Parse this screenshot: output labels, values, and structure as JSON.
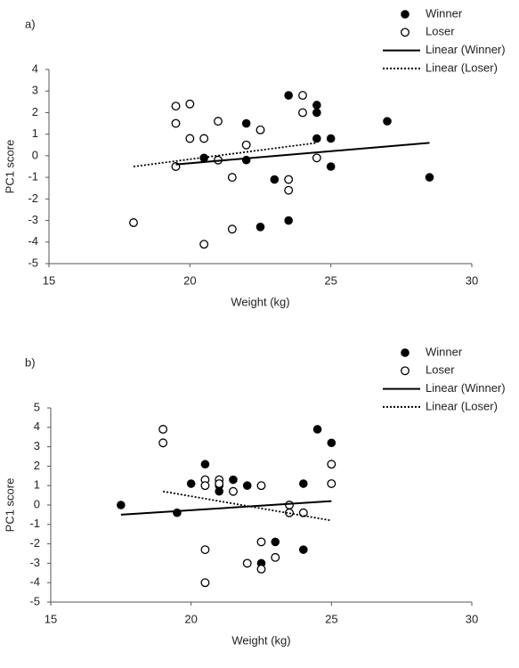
{
  "chart_data": [
    {
      "type": "scatter",
      "label": "a)",
      "xlabel": "Weight (kg)",
      "ylabel": "PC1 score",
      "xlim": [
        15,
        30
      ],
      "xticks": [
        15,
        20,
        25,
        30
      ],
      "ylim": [
        -5,
        4
      ],
      "yticks": [
        -5,
        -4,
        -3,
        -2,
        -1,
        0,
        1,
        2,
        3,
        4
      ],
      "series": [
        {
          "name": "Winner",
          "color": "#000000",
          "marker": "filled",
          "x": [
            23.5,
            24.5,
            24.5,
            22,
            27,
            24.5,
            25,
            20.5,
            22,
            25,
            23,
            28.5,
            23.5,
            22.5
          ],
          "values": [
            2.8,
            2.35,
            2.0,
            1.5,
            1.6,
            0.8,
            0.8,
            -0.1,
            -0.2,
            -0.5,
            -1.1,
            -1.0,
            -3.0,
            -3.3
          ]
        },
        {
          "name": "Loser",
          "color": "#000000",
          "marker": "open",
          "x": [
            19.5,
            20,
            24,
            24,
            19.5,
            21,
            22.5,
            20,
            20.5,
            22,
            21,
            19.5,
            24.5,
            21.5,
            23.5,
            23.5,
            18,
            21.5,
            20.5
          ],
          "values": [
            2.3,
            2.4,
            2.8,
            2.0,
            1.5,
            1.6,
            1.2,
            0.8,
            0.8,
            0.5,
            -0.2,
            -0.5,
            -0.1,
            -1.0,
            -1.1,
            -1.6,
            -3.1,
            -3.4,
            -4.1
          ]
        }
      ],
      "trendlines": [
        {
          "name": "Linear (Winner)",
          "color": "#000000",
          "style": "solid",
          "x": [
            19.5,
            28.5
          ],
          "values": [
            -0.4,
            0.6
          ]
        },
        {
          "name": "Linear (Loser)",
          "color": "#000000",
          "style": "dotted",
          "x": [
            18,
            24.5
          ],
          "values": [
            -0.5,
            0.6
          ]
        }
      ]
    },
    {
      "type": "scatter",
      "label": "b)",
      "xlabel": "Weight (kg)",
      "ylabel": "PC1 score",
      "xlim": [
        15,
        30
      ],
      "xticks": [
        15,
        20,
        25,
        30
      ],
      "ylim": [
        -5,
        5
      ],
      "yticks": [
        -5,
        -4,
        -3,
        -2,
        -1,
        0,
        1,
        2,
        3,
        4,
        5
      ],
      "series": [
        {
          "name": "Winner",
          "color": "#000000",
          "marker": "filled",
          "x": [
            17.5,
            19.5,
            20.5,
            20,
            21,
            21,
            21.5,
            22,
            24.5,
            25,
            24,
            23,
            22.5,
            24
          ],
          "values": [
            0,
            -0.4,
            2.1,
            1.1,
            1.0,
            0.7,
            1.3,
            1.0,
            3.9,
            3.2,
            1.1,
            -1.9,
            -3.0,
            -2.3
          ]
        },
        {
          "name": "Loser",
          "color": "#000000",
          "marker": "open",
          "x": [
            19,
            19,
            20.5,
            20.5,
            21,
            21,
            21.5,
            22.5,
            23.5,
            23.5,
            24,
            25,
            25,
            20.5,
            22.5,
            22,
            23,
            22.5,
            20.5
          ],
          "values": [
            3.9,
            3.2,
            1.3,
            1.0,
            1.3,
            1.1,
            0.7,
            1.0,
            0,
            -0.4,
            -0.4,
            2.1,
            1.1,
            -2.3,
            -1.9,
            -3.0,
            -2.7,
            -3.3,
            -4.0
          ]
        }
      ],
      "trendlines": [
        {
          "name": "Linear (Winner)",
          "color": "#000000",
          "style": "solid",
          "x": [
            17.5,
            25
          ],
          "values": [
            -0.5,
            0.2
          ]
        },
        {
          "name": "Linear (Loser)",
          "color": "#000000",
          "style": "dotted",
          "x": [
            19,
            25
          ],
          "values": [
            0.7,
            -0.8
          ]
        }
      ]
    }
  ]
}
